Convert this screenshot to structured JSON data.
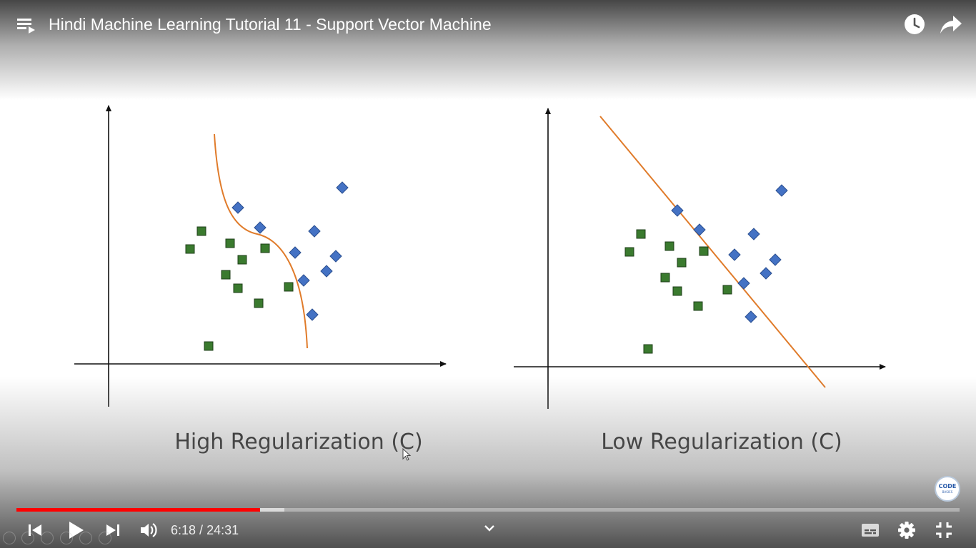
{
  "video": {
    "title": "Hindi Machine Learning Tutorial 11 - Support Vector Machine",
    "progress_played_fraction": 0.258,
    "progress_buffered_fraction": 0.284
  },
  "slide": {
    "left_caption": "High Regularization (C)",
    "right_caption": "Low Regularization (C)",
    "colors": {
      "square_fill": "#3a7a2e",
      "square_stroke": "#1f3f1a",
      "diamond_fill": "#4472c4",
      "diamond_stroke": "#2a4f90",
      "boundary": "#e07b2a",
      "axis": "#111111"
    }
  },
  "controls": {
    "current_time": "6:18",
    "separator": "/",
    "duration": "24:31",
    "icons": {
      "playlist": "playlist-icon",
      "watch_later": "clock-icon",
      "share": "share-arrow-icon",
      "previous": "skip-previous-icon",
      "play": "play-icon",
      "next": "skip-next-icon",
      "volume": "volume-icon",
      "chapters": "chevron-down-icon",
      "subtitles": "subtitles-icon",
      "settings": "gear-icon",
      "exit_fullscreen": "exit-fullscreen-icon"
    },
    "accent_color": "#ff0000"
  },
  "watermark": {
    "text": "CODE",
    "subtext": "BASICS"
  }
}
